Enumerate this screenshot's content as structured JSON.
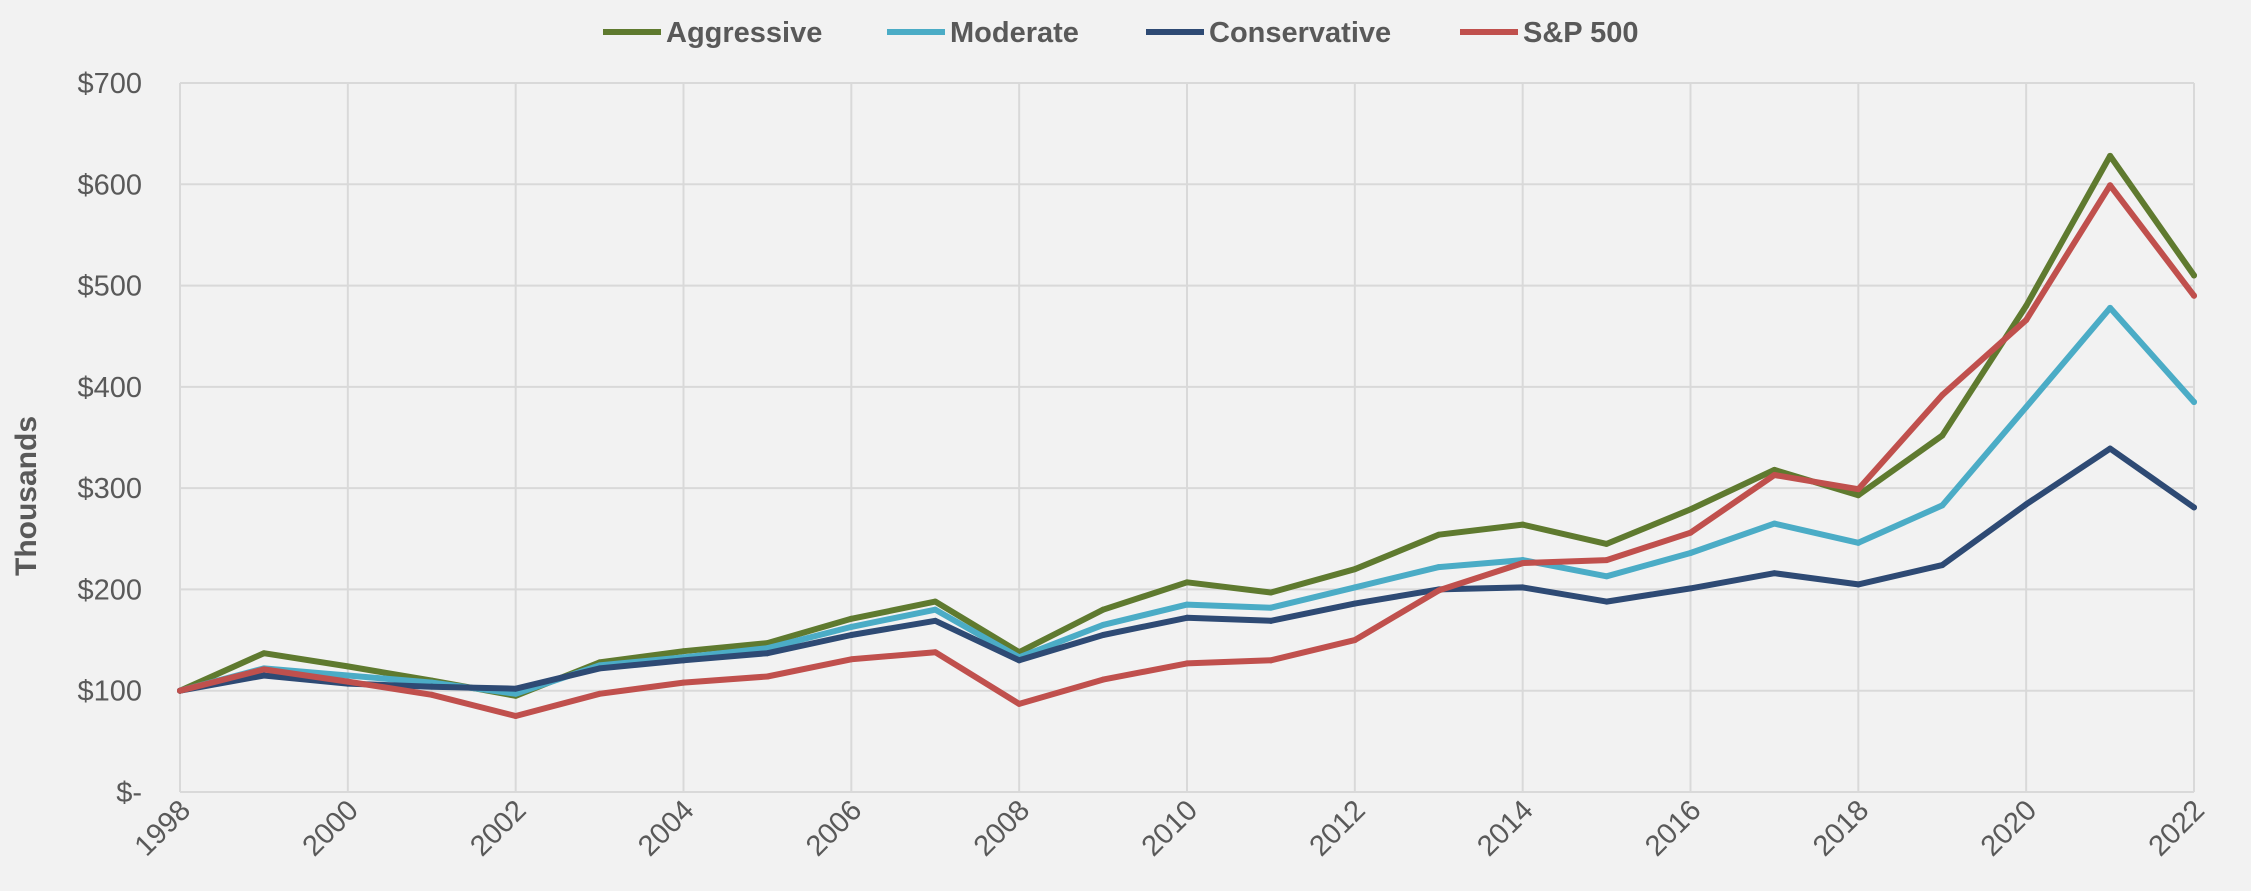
{
  "chart_data": {
    "type": "line",
    "title": "",
    "xlabel": "",
    "ylabel": "Thousands",
    "x": [
      1998,
      1999,
      2000,
      2001,
      2002,
      2003,
      2004,
      2005,
      2006,
      2007,
      2008,
      2009,
      2010,
      2011,
      2012,
      2013,
      2014,
      2015,
      2016,
      2017,
      2018,
      2019,
      2020,
      2021,
      2022
    ],
    "xticks": [
      "1998",
      "2000",
      "2002",
      "2004",
      "2006",
      "2008",
      "2010",
      "2012",
      "2014",
      "2016",
      "2018",
      "2020",
      "2022"
    ],
    "ylim": [
      0,
      700
    ],
    "yticks": [
      0,
      100,
      200,
      300,
      400,
      500,
      600,
      700
    ],
    "ytick_labels": [
      "$-",
      "$100",
      "$200",
      "$300",
      "$400",
      "$500",
      "$600",
      "$700"
    ],
    "grid": true,
    "legend_position": "top-center",
    "series": [
      {
        "name": "Aggressive",
        "color": "#5f7a2f",
        "values": [
          100,
          137,
          124,
          110,
          95,
          128,
          139,
          147,
          171,
          188,
          138,
          180,
          207,
          197,
          220,
          254,
          264,
          245,
          279,
          318,
          293,
          352,
          480,
          628,
          510
        ]
      },
      {
        "name": "Moderate",
        "color": "#4bacc6",
        "values": [
          100,
          122,
          115,
          108,
          97,
          125,
          133,
          142,
          163,
          180,
          133,
          165,
          185,
          182,
          202,
          222,
          229,
          213,
          236,
          265,
          246,
          283,
          380,
          478,
          385
        ]
      },
      {
        "name": "Conservative",
        "color": "#2e4a74",
        "values": [
          100,
          115,
          107,
          104,
          102,
          122,
          130,
          137,
          155,
          169,
          130,
          155,
          172,
          169,
          186,
          200,
          202,
          188,
          201,
          216,
          205,
          224,
          284,
          339,
          281
        ]
      },
      {
        "name": "S&P 500",
        "color": "#c0504d",
        "values": [
          100,
          121,
          109,
          96,
          75,
          97,
          108,
          114,
          131,
          138,
          87,
          111,
          127,
          130,
          150,
          199,
          226,
          229,
          256,
          313,
          299,
          392,
          466,
          599,
          490
        ]
      }
    ]
  }
}
